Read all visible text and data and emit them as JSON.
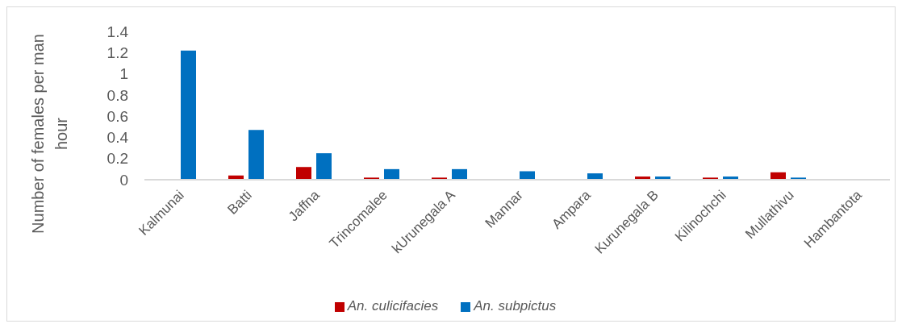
{
  "chart_data": {
    "type": "bar",
    "ylabel": "Number of females per man hour",
    "categories": [
      "Kalmunai",
      "Batti",
      "Jaffna",
      "Trincomalee",
      "kUrunegala A",
      "Mannar",
      "Ampara",
      "Kurunegala B",
      "Kilinochchi",
      "Mullathivu",
      "Hambantota"
    ],
    "series": [
      {
        "name": "An. culicifacies",
        "color": "#c00000",
        "values": [
          0,
          0.04,
          0.12,
          0.02,
          0.02,
          0,
          0,
          0.03,
          0.02,
          0.07,
          0
        ]
      },
      {
        "name": "An. subpictus",
        "color": "#0070c0",
        "values": [
          1.22,
          0.47,
          0.25,
          0.1,
          0.1,
          0.08,
          0.06,
          0.03,
          0.03,
          0.02,
          0
        ]
      }
    ],
    "ylim": [
      0,
      1.4
    ],
    "yticks": [
      0,
      0.2,
      0.4,
      0.6,
      0.8,
      1,
      1.2,
      1.4
    ],
    "grid": false,
    "legend": "bottom"
  }
}
